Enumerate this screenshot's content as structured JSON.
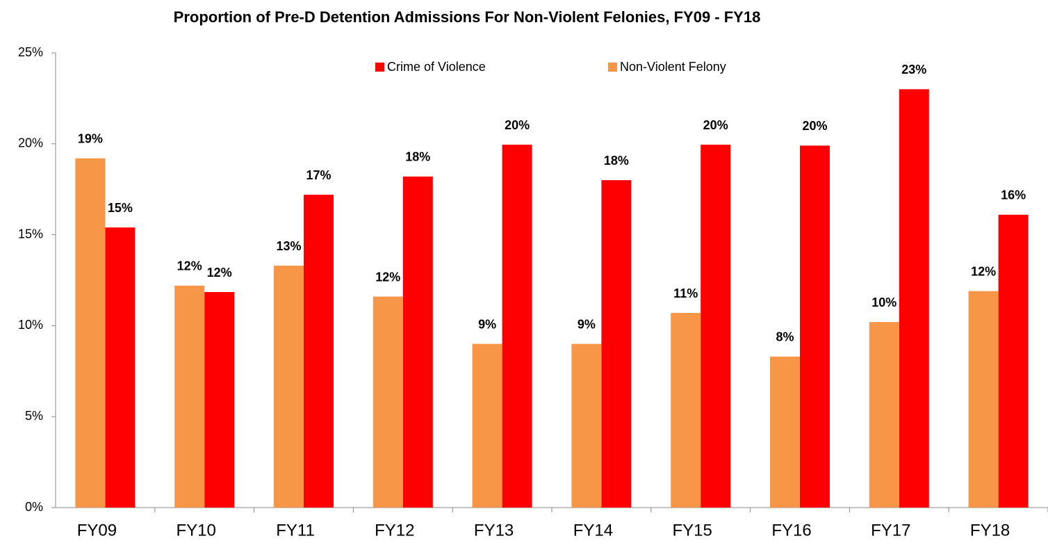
{
  "chart_data": {
    "type": "bar",
    "title": "Proportion of Pre-D Detention Admissions For Non-Violent Felonies, FY09 - FY18",
    "categories": [
      "FY09",
      "FY10",
      "FY11",
      "FY12",
      "FY13",
      "FY14",
      "FY15",
      "FY16",
      "FY17",
      "FY18"
    ],
    "series": [
      {
        "name": "Crime of Violence",
        "color": "#ff0000",
        "values": [
          15.4,
          11.85,
          17.2,
          18.2,
          19.95,
          18.0,
          19.95,
          19.9,
          23.0,
          16.1
        ],
        "value_labels": [
          "15%",
          "12%",
          "17%",
          "18%",
          "20%",
          "18%",
          "20%",
          "20%",
          "23%",
          "16%"
        ]
      },
      {
        "name": "Non-Violent Felony",
        "color": "#f79646",
        "values": [
          19.2,
          12.2,
          13.3,
          11.6,
          9.0,
          9.0,
          10.7,
          8.3,
          10.2,
          11.9
        ],
        "value_labels": [
          "19%",
          "12%",
          "13%",
          "12%",
          "9%",
          "9%",
          "11%",
          "8%",
          "10%",
          "12%"
        ]
      }
    ],
    "ylim": [
      0,
      25
    ],
    "yticks": [
      {
        "value": 0,
        "label": "0%"
      },
      {
        "value": 5,
        "label": "5%"
      },
      {
        "value": 10,
        "label": "10%"
      },
      {
        "value": 15,
        "label": "15%"
      },
      {
        "value": 20,
        "label": "20%"
      },
      {
        "value": 25,
        "label": "25%"
      }
    ],
    "grid": false,
    "legend": "top"
  }
}
